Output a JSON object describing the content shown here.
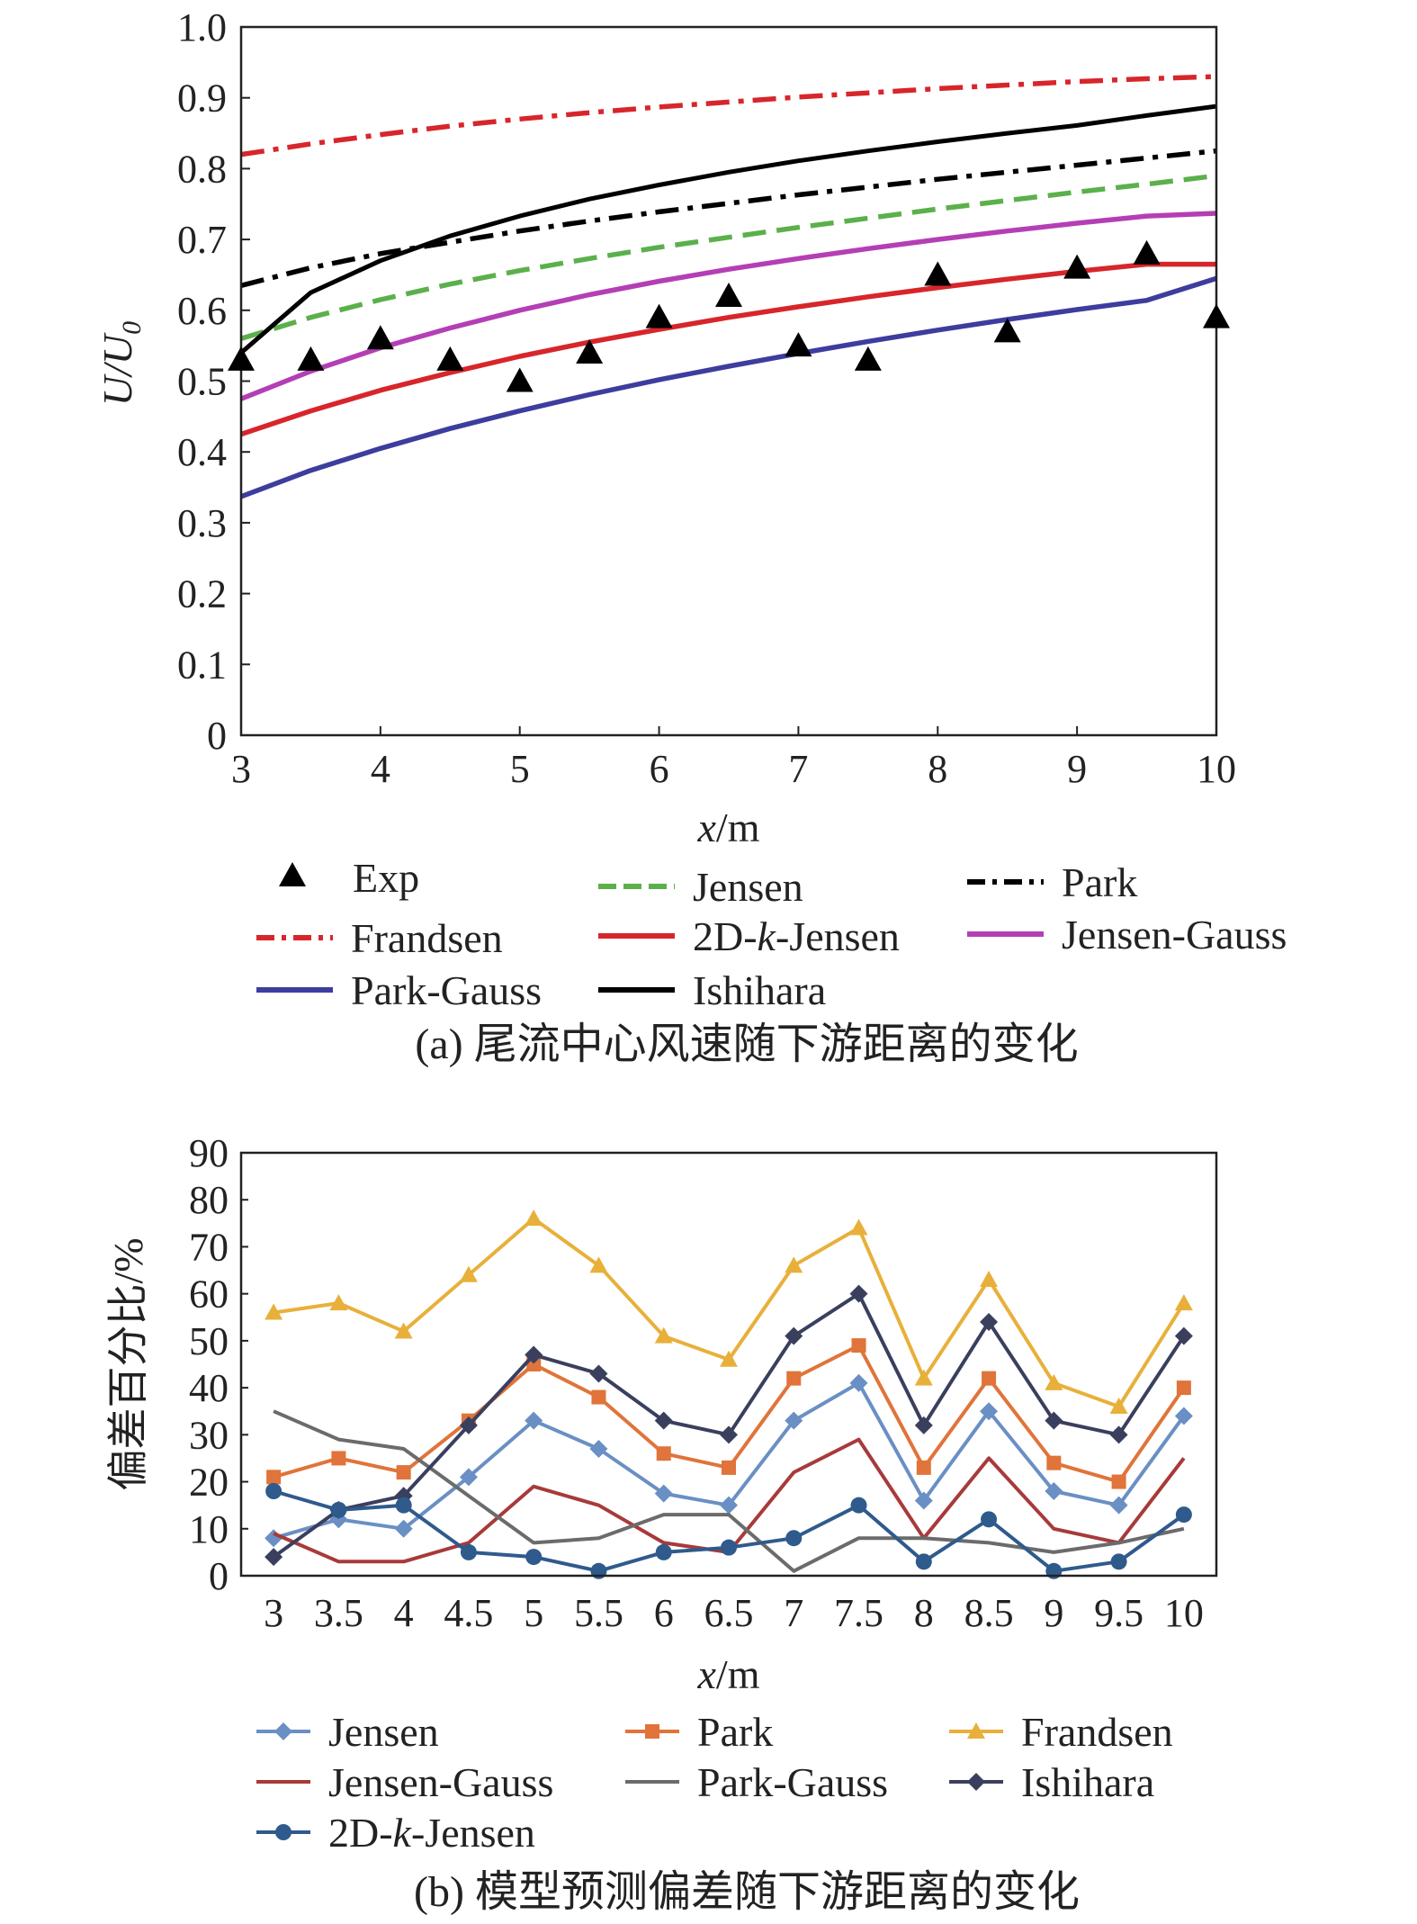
{
  "chart_data": [
    {
      "id": "a",
      "type": "line",
      "caption": "(a) 尾流中心风速随下游距离的变化",
      "xlabel": "x/m",
      "ylabel": "U/U0",
      "xlim": [
        3,
        10
      ],
      "ylim": [
        0,
        1.0
      ],
      "x_ticks": [
        "3",
        "4",
        "5",
        "6",
        "7",
        "8",
        "9",
        "10"
      ],
      "y_ticks": [
        "0",
        "0.1",
        "0.2",
        "0.3",
        "0.4",
        "0.5",
        "0.6",
        "0.7",
        "0.8",
        "0.9",
        "1.0"
      ],
      "grid": false,
      "legend_position": "bottom",
      "x": [
        3,
        3.5,
        4,
        4.5,
        5,
        5.5,
        6,
        6.5,
        7,
        7.5,
        8,
        8.5,
        9,
        9.5,
        10
      ],
      "series": [
        {
          "name": "Exp",
          "style": "marker",
          "marker": "triangle",
          "color": "#000000",
          "values": [
            0.53,
            0.53,
            0.56,
            0.53,
            0.5,
            0.54,
            0.59,
            0.62,
            0.55,
            0.53,
            0.65,
            0.57,
            0.66,
            0.68,
            0.59
          ]
        },
        {
          "name": "Jensen",
          "style": "dashed",
          "color": "#5bb04b",
          "values": [
            0.56,
            0.59,
            0.615,
            0.637,
            0.656,
            0.673,
            0.689,
            0.703,
            0.717,
            0.73,
            0.743,
            0.755,
            0.767,
            0.778,
            0.79
          ]
        },
        {
          "name": "Park",
          "style": "dashdot",
          "color": "#000000",
          "values": [
            0.635,
            0.66,
            0.68,
            0.696,
            0.712,
            0.726,
            0.739,
            0.751,
            0.763,
            0.774,
            0.785,
            0.795,
            0.805,
            0.815,
            0.825
          ]
        },
        {
          "name": "Frandsen",
          "style": "dashdot",
          "color": "#d7262b",
          "values": [
            0.82,
            0.835,
            0.848,
            0.86,
            0.87,
            0.879,
            0.887,
            0.894,
            0.901,
            0.907,
            0.913,
            0.918,
            0.923,
            0.927,
            0.93
          ]
        },
        {
          "name": "2D-k-Jensen",
          "style": "solid",
          "color": "#d7262b",
          "values": [
            0.425,
            0.458,
            0.487,
            0.512,
            0.535,
            0.555,
            0.573,
            0.59,
            0.605,
            0.619,
            0.632,
            0.644,
            0.655,
            0.665,
            0.665
          ]
        },
        {
          "name": "Jensen-Gauss",
          "style": "solid",
          "color": "#b43fb5",
          "values": [
            0.475,
            0.514,
            0.547,
            0.575,
            0.6,
            0.622,
            0.641,
            0.658,
            0.673,
            0.687,
            0.7,
            0.712,
            0.723,
            0.733,
            0.737
          ]
        },
        {
          "name": "Park-Gauss",
          "style": "solid",
          "color": "#3d3d9e",
          "values": [
            0.337,
            0.374,
            0.405,
            0.433,
            0.458,
            0.481,
            0.502,
            0.521,
            0.539,
            0.556,
            0.572,
            0.587,
            0.601,
            0.614,
            0.645
          ]
        },
        {
          "name": "Ishihara",
          "style": "solid",
          "color": "#000000",
          "values": [
            0.54,
            0.625,
            0.67,
            0.705,
            0.733,
            0.757,
            0.777,
            0.795,
            0.811,
            0.825,
            0.838,
            0.85,
            0.861,
            0.875,
            0.888
          ]
        }
      ]
    },
    {
      "id": "b",
      "type": "line",
      "caption": "(b) 模型预测偏差随下游距离的变化",
      "xlabel": "x/m",
      "ylabel": "偏差百分比/%",
      "ylim": [
        0,
        90
      ],
      "categories": [
        "3",
        "3.5",
        "4",
        "4.5",
        "5",
        "5.5",
        "6",
        "6.5",
        "7",
        "7.5",
        "8",
        "8.5",
        "9",
        "9.5",
        "10"
      ],
      "y_ticks": [
        "0",
        "10",
        "20",
        "30",
        "40",
        "50",
        "60",
        "70",
        "80",
        "90"
      ],
      "grid": false,
      "legend_position": "bottom",
      "series": [
        {
          "name": "Jensen",
          "marker": "diamond",
          "color": "#6a8fc4",
          "values": [
            8,
            12,
            10,
            21,
            33,
            27,
            17.5,
            15,
            33,
            41,
            16,
            35,
            18,
            15,
            34
          ]
        },
        {
          "name": "Park",
          "marker": "square",
          "color": "#e0743a",
          "values": [
            21,
            25,
            22,
            33,
            45,
            38,
            26,
            23,
            42,
            49,
            23,
            42,
            24,
            20,
            40
          ]
        },
        {
          "name": "Frandsen",
          "marker": "triangle",
          "color": "#e8b03a",
          "values": [
            56,
            58,
            52,
            64,
            76,
            66,
            51,
            46,
            66,
            74,
            42,
            63,
            41,
            36,
            58
          ]
        },
        {
          "name": "Jensen-Gauss",
          "marker": "none",
          "color": "#a83a3a",
          "values": [
            9,
            3,
            3,
            7,
            19,
            15,
            7,
            5,
            22,
            29,
            8,
            25,
            10,
            7,
            25
          ]
        },
        {
          "name": "Park-Gauss",
          "marker": "none",
          "color": "#6b6b6b",
          "values": [
            35,
            29,
            27,
            17,
            7,
            8,
            13,
            13,
            1,
            8,
            8,
            7,
            5,
            7,
            10
          ]
        },
        {
          "name": "Ishihara",
          "marker": "diamond",
          "color": "#3a3f5e",
          "values": [
            4,
            14,
            17,
            32,
            47,
            43,
            33,
            30,
            51,
            60,
            32,
            54,
            33,
            30,
            51
          ]
        },
        {
          "name": "2D-k-Jensen",
          "marker": "circle",
          "color": "#2f5a8c",
          "values": [
            18,
            14,
            15,
            5,
            4,
            1,
            5,
            6,
            8,
            15,
            3,
            12,
            1,
            3,
            13
          ]
        }
      ]
    }
  ]
}
